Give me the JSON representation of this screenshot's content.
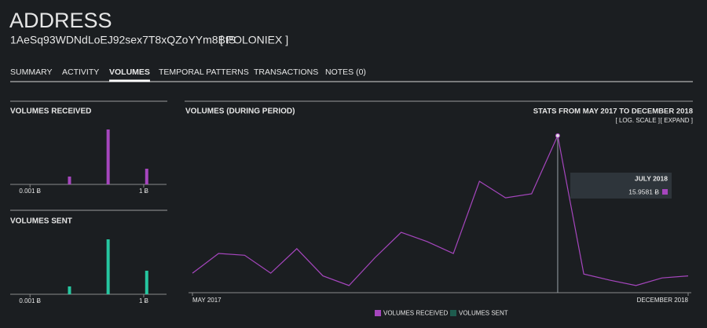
{
  "header": {
    "title": "ADDRESS",
    "address": "1AeSq93WDNdLoEJ92sex7T8xQZoYYm8BtS",
    "exchange": "[ POLONIEX ]"
  },
  "tabs": [
    "SUMMARY",
    "ACTIVITY",
    "VOLUMES",
    "TEMPORAL PATTERNS",
    "TRANSACTIONS",
    "NOTES (0)"
  ],
  "active_tab": 2,
  "received_chart": {
    "type": "bar",
    "title": "VOLUMES RECEIVED",
    "color": "#a646be",
    "log_x": true,
    "x": [
      0.011,
      0.115,
      1.2
    ],
    "values": [
      1,
      7,
      2
    ],
    "xlim": [
      0.0003,
      4
    ],
    "xticks": [
      {
        "value": 0.001,
        "label": "0.001 Ƀ"
      },
      {
        "value": 1,
        "label": "1 Ƀ"
      }
    ],
    "ylim": [
      0,
      7.5
    ]
  },
  "sent_chart": {
    "type": "bar",
    "title": "VOLUMES SENT",
    "color": "#26c6a0",
    "log_x": true,
    "x": [
      0.011,
      0.115,
      1.2
    ],
    "values": [
      1,
      7,
      3
    ],
    "xlim": [
      0.0003,
      4
    ],
    "xticks": [
      {
        "value": 0.001,
        "label": "0.001 Ƀ"
      },
      {
        "value": 1,
        "label": "1 Ƀ"
      }
    ],
    "ylim": [
      0,
      7.5
    ]
  },
  "chart_data": {
    "type": "line",
    "title": "VOLUMES (DURING PERIOD)",
    "subtitle": "STATS FROM MAY 2017 TO DECEMBER 2018",
    "log_scale_label": "[ LOG. SCALE ]",
    "expand_label": "[ EXPAND ]",
    "log_scale": true,
    "categories": [
      "MAY 2017",
      null,
      null,
      null,
      null,
      null,
      null,
      null,
      null,
      null,
      null,
      null,
      null,
      null,
      null,
      null,
      null,
      null,
      null,
      "DECEMBER 2018"
    ],
    "series": [
      {
        "name": "VOLUMES RECEIVED",
        "color": "#a646be",
        "values": [
          0.025,
          0.063,
          0.058,
          0.025,
          0.079,
          0.022,
          0.014,
          0.052,
          0.17,
          0.11,
          0.063,
          1.87,
          0.86,
          1.04,
          15.9581,
          0.024,
          0.018,
          0.014,
          0.02,
          0.022
        ]
      }
    ],
    "legend": [
      {
        "name": "VOLUMES RECEIVED",
        "color": "#a646be",
        "active": true
      },
      {
        "name": "VOLUMES SENT",
        "color": "#1e5c4e",
        "active": false
      }
    ],
    "ylim": [
      0.01,
      37
    ],
    "tooltip": {
      "index": 14,
      "title": "JULY 2018",
      "value_label": "15.9581 Ƀ"
    }
  }
}
